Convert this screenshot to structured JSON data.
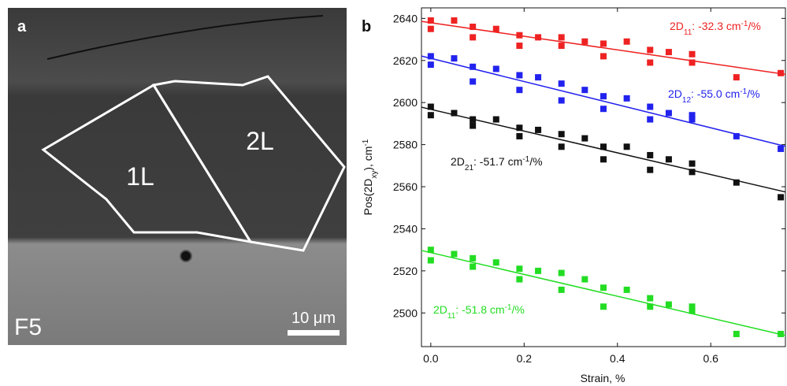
{
  "panel_a": {
    "letter": "a",
    "sample": "F5",
    "scale_bar": "10 μm",
    "regions": [
      "1L",
      "2L"
    ]
  },
  "chart_data": {
    "type": "scatter",
    "letter": "b",
    "xlabel": "Strain, %",
    "ylabel": [
      "Pos(2D",
      "xy",
      "), cm",
      "-1"
    ],
    "xlim": [
      -0.02,
      0.76
    ],
    "ylim": [
      2484,
      2645
    ],
    "xticks": [
      {
        "value": 0,
        "label": "0.0"
      },
      {
        "value": 0.2,
        "label": "0.2"
      },
      {
        "value": 0.4,
        "label": "0.4"
      },
      {
        "value": 0.6,
        "label": "0.6"
      }
    ],
    "yticks": [
      2500,
      2520,
      2540,
      2560,
      2580,
      2600,
      2620,
      2640
    ],
    "x": [
      0,
      0,
      0.05,
      0.09,
      0.09,
      0.14,
      0.19,
      0.19,
      0.23,
      0.28,
      0.28,
      0.33,
      0.37,
      0.37,
      0.42,
      0.47,
      0.47,
      0.51,
      0.56,
      0.56,
      0.655,
      0.75
    ],
    "series": [
      {
        "color": "#ee2222",
        "label": [
          "2D",
          "11",
          ": -32.3 cm",
          "-1",
          "/%"
        ],
        "values": [
          2639,
          2635,
          2639,
          2636,
          2631,
          2635,
          2632,
          2627,
          2631,
          2631,
          2627,
          2629,
          2628,
          2622,
          2629,
          2625,
          2619,
          2624,
          2623,
          2619,
          2612,
          2614
        ],
        "fit": {
          "x": [
            -0.02,
            0.76
          ],
          "values": [
            2638.6,
            2613.4
          ]
        }
      },
      {
        "color": "#2222ee",
        "label": [
          "2D",
          "12",
          ": -55.0 cm",
          "-1",
          "/%"
        ],
        "values": [
          2622,
          2618,
          2621,
          2617,
          2610,
          2616,
          2613,
          2606,
          2612,
          2609,
          2601,
          2606,
          2603,
          2597,
          2602,
          2598,
          2592,
          2595,
          2594,
          2592,
          2584,
          2578
        ],
        "fit": {
          "x": [
            -0.02,
            0.76
          ],
          "values": [
            2622.1,
            2579.2
          ]
        }
      },
      {
        "color": "#111111",
        "label": [
          "2D",
          "21",
          ": -51.7 cm",
          "-1",
          "/%"
        ],
        "values": [
          2598,
          2594,
          2595,
          2592,
          2589,
          2592,
          2588,
          2584,
          2587,
          2585,
          2579,
          2583,
          2579,
          2573,
          2579,
          2575,
          2568,
          2573,
          2571,
          2567,
          2562,
          2555
        ],
        "fit": {
          "x": [
            -0.02,
            0.76
          ],
          "values": [
            2597.8,
            2557.5
          ]
        }
      },
      {
        "color": "#22dd22",
        "label": [
          "2D",
          "11",
          ": -51.8 cm",
          "-1",
          "/%"
        ],
        "values": [
          2530,
          2525,
          2528,
          2526,
          2522,
          2524,
          2521,
          2516,
          2520,
          2519,
          2511,
          2516,
          2512,
          2503,
          2511,
          2507,
          2503,
          2504,
          2503,
          2501,
          2490,
          2490
        ],
        "fit": {
          "x": [
            -0.02,
            0.76
          ],
          "values": [
            2529.7,
            2489.3
          ]
        }
      }
    ]
  }
}
